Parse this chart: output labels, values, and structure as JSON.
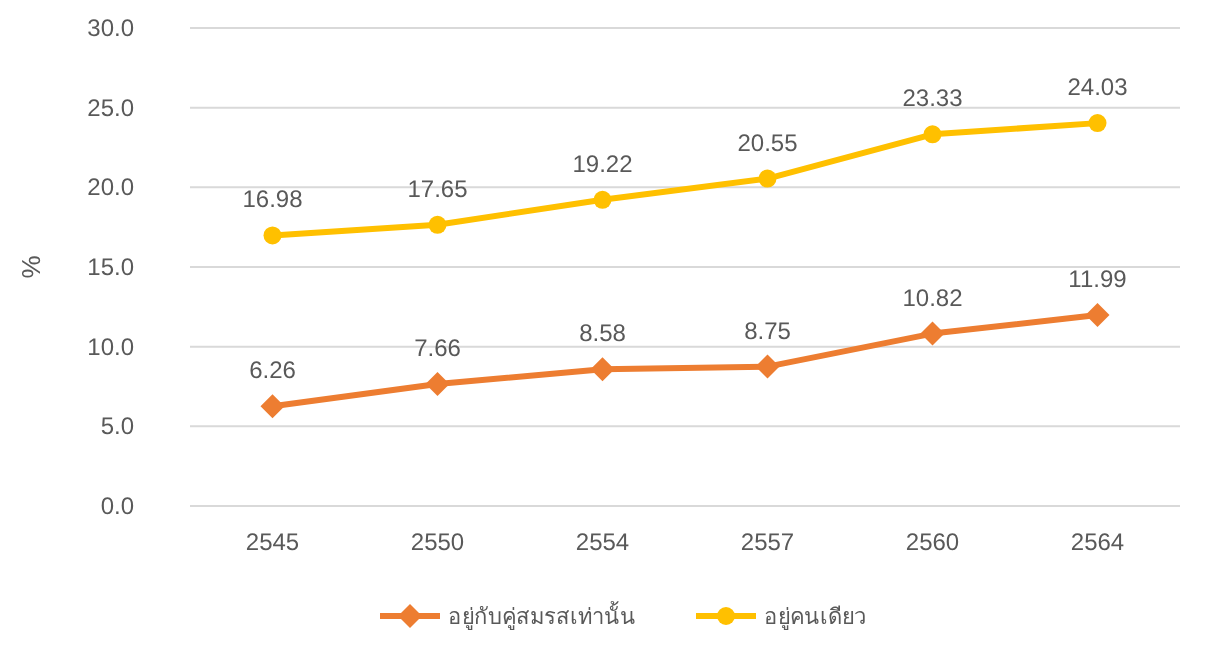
{
  "chart_data": {
    "type": "line",
    "ylabel": "%",
    "categories": [
      "2545",
      "2550",
      "2554",
      "2557",
      "2560",
      "2564"
    ],
    "series": [
      {
        "name": "อยู่กับคู่สมรสเท่านั้น",
        "color": "#ed7d31",
        "marker": "diamond",
        "values": [
          6.26,
          7.66,
          8.58,
          8.75,
          10.82,
          11.99
        ]
      },
      {
        "name": "อยู่คนเดียว",
        "color": "#ffc000",
        "marker": "circle",
        "values": [
          16.98,
          17.65,
          19.22,
          20.55,
          23.33,
          24.03
        ]
      }
    ],
    "ylim": [
      0,
      30
    ],
    "yticks": [
      {
        "value": 0,
        "label": "0.0"
      },
      {
        "value": 5,
        "label": "5.0"
      },
      {
        "value": 10,
        "label": "10.0"
      },
      {
        "value": 15,
        "label": "15.0"
      },
      {
        "value": 20,
        "label": "20.0"
      },
      {
        "value": 25,
        "label": "25.0"
      },
      {
        "value": 30,
        "label": "30.0"
      }
    ],
    "grid": "y",
    "legend": "bottom",
    "data_labels": true
  }
}
